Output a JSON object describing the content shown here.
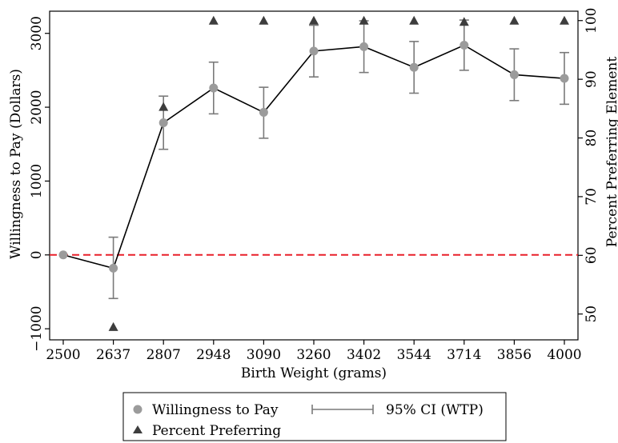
{
  "chart_data": {
    "type": "line",
    "x_label": "Birth Weight (grams)",
    "y_label_left": "Willingness to Pay (Dollars)",
    "y_label_right": "Percent Preferring Element",
    "categories": [
      "2500",
      "2637",
      "2807",
      "2948",
      "3090",
      "3260",
      "3402",
      "3544",
      "3714",
      "3856",
      "4000"
    ],
    "left_axis": {
      "range": [
        -1150,
        3300
      ],
      "ticks": [
        -1000,
        0,
        1000,
        2000,
        3000
      ]
    },
    "right_axis": {
      "range": [
        45.6,
        101.6
      ],
      "ticks": [
        50,
        60,
        70,
        80,
        90,
        100
      ]
    },
    "reference_line": {
      "y": 0,
      "style": "dashed",
      "color": "#e8202a"
    },
    "series": [
      {
        "name": "Willingness to Pay",
        "axis": "left",
        "values": [
          0,
          -180,
          1790,
          2260,
          1930,
          2760,
          2820,
          2540,
          2840,
          2440,
          2390
        ],
        "ci_low": [
          0,
          -590,
          1430,
          1910,
          1580,
          2410,
          2470,
          2190,
          2500,
          2090,
          2040
        ],
        "ci_high": [
          0,
          240,
          2150,
          2610,
          2270,
          3110,
          3170,
          2890,
          3180,
          2790,
          2740
        ],
        "marker": "circle",
        "color": "#9b9b9b",
        "line_color": "#000000"
      },
      {
        "name": "Percent Preferring",
        "axis": "right",
        "values": [
          null,
          47.8,
          85.3,
          100,
          100,
          100,
          100,
          100,
          99.8,
          100,
          100
        ],
        "marker": "triangle",
        "color": "#3d3d3d"
      }
    ],
    "legend": {
      "position": "bottom",
      "entries": [
        "Willingness to Pay",
        "95% CI (WTP)",
        "Percent Preferring"
      ]
    },
    "grid": false
  }
}
